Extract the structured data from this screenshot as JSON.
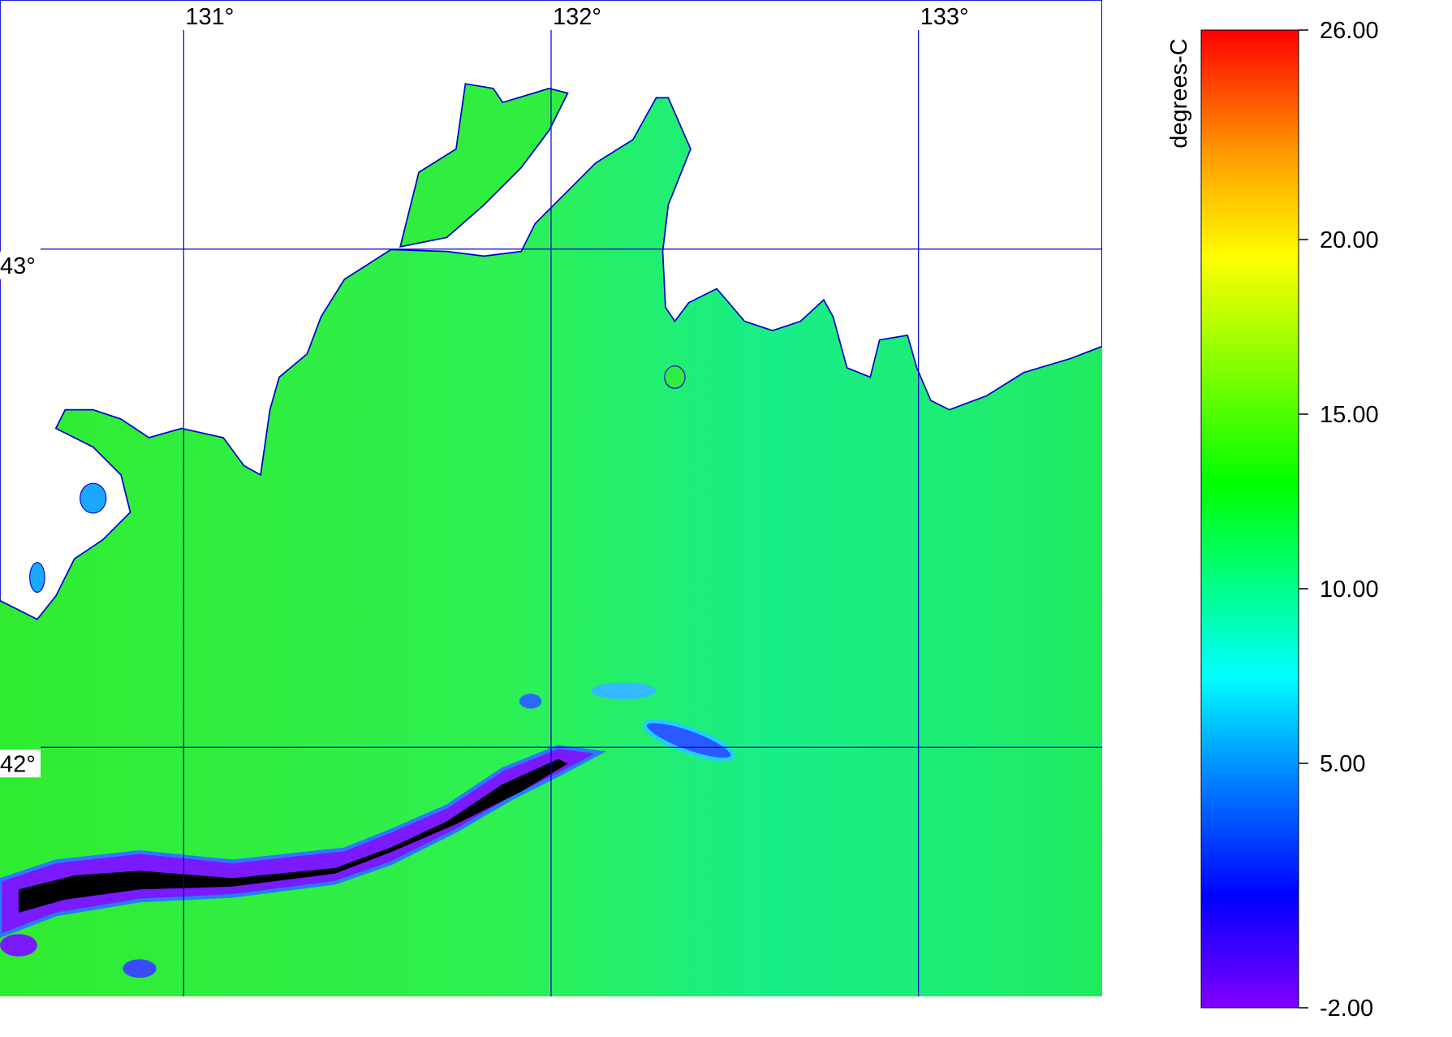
{
  "map": {
    "lon_lim": [
      130.5,
      133.5
    ],
    "lat_lim": [
      41.5,
      43.5
    ],
    "lon_ticks": [
      {
        "value": 131,
        "label": "131°"
      },
      {
        "value": 132,
        "label": "132°"
      },
      {
        "value": 133,
        "label": "133°"
      }
    ],
    "lat_ticks": [
      {
        "value": 43,
        "label": "43°"
      },
      {
        "value": 42,
        "label": "42°"
      }
    ],
    "grid_color": "#0000cc"
  },
  "colorbar": {
    "label": "degrees-C",
    "lim": [
      -2,
      26
    ],
    "ticks": [
      {
        "value": 26,
        "label": "26.00"
      },
      {
        "value": 20,
        "label": "20.00"
      },
      {
        "value": 15,
        "label": "15.00"
      },
      {
        "value": 10,
        "label": "10.00"
      },
      {
        "value": 5,
        "label": "5.00"
      },
      {
        "value": -2,
        "label": "-2.00"
      }
    ],
    "colormap": [
      {
        "value": -2,
        "color": "#8000ff"
      },
      {
        "value": 1.2,
        "color": "#0000ff"
      },
      {
        "value": 4.5,
        "color": "#0080ff"
      },
      {
        "value": 7.5,
        "color": "#00ffff"
      },
      {
        "value": 13,
        "color": "#00ff00"
      },
      {
        "value": 19.5,
        "color": "#ffff00"
      },
      {
        "value": 22.5,
        "color": "#ff9900"
      },
      {
        "value": 26,
        "color": "#ff0000"
      }
    ]
  }
}
